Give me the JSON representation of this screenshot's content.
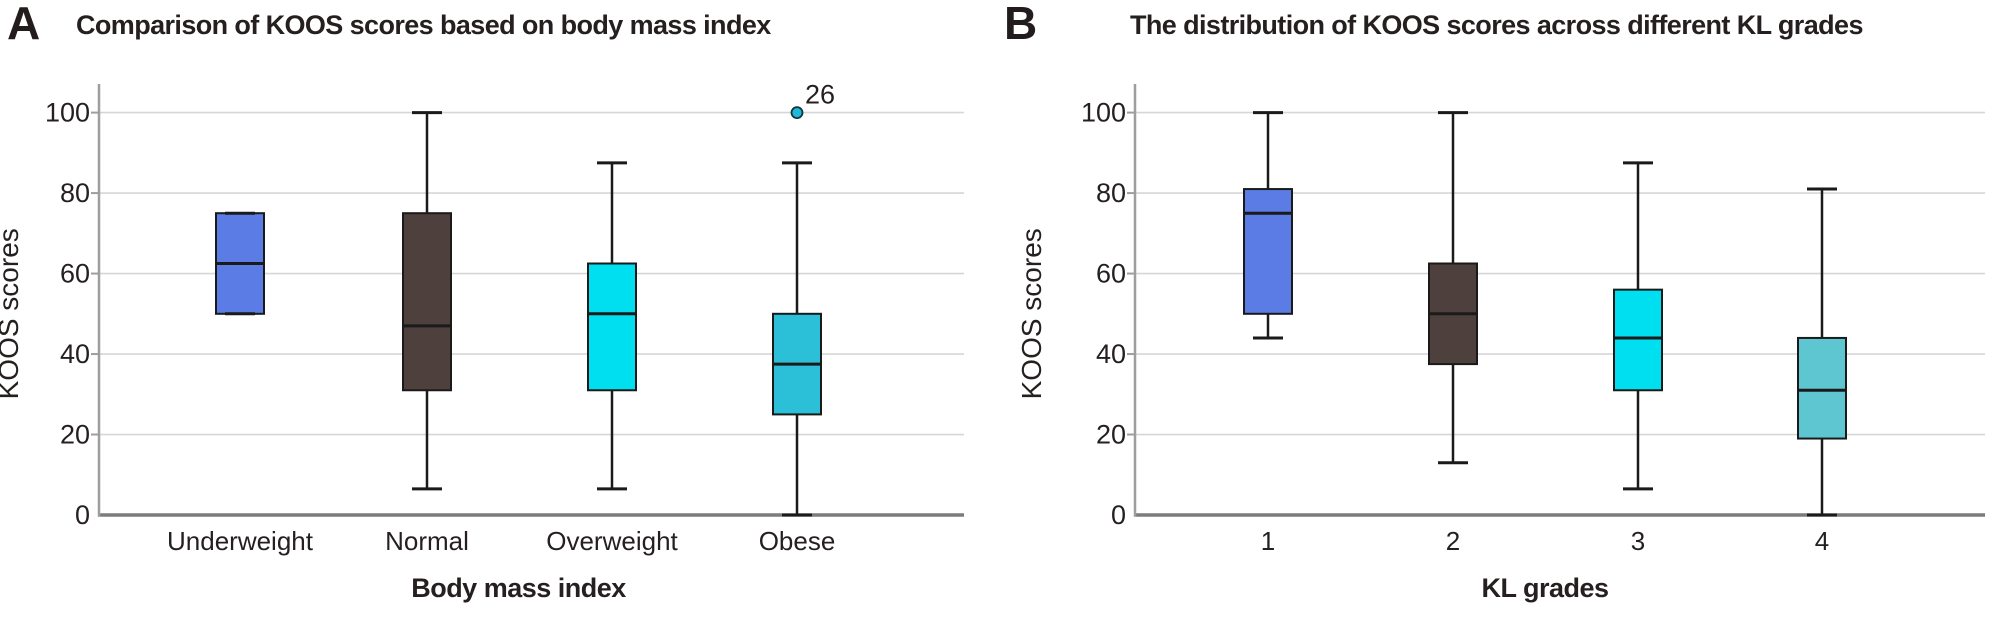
{
  "colors": {
    "grid": "#D6D6D6",
    "baseline": "#7C7C7C",
    "axis_line": "#9E9E9E",
    "box_border": "#1A1A1A",
    "whisker": "#1A1A1A",
    "text": "#251F1F",
    "outlier_fill": "#1FB9D8",
    "outlier_stroke": "#16323E"
  },
  "chart_data": [
    {
      "type": "box",
      "panel_label": "A",
      "title": "Comparison of KOOS scores based on body mass index",
      "xlabel": "Body mass index",
      "ylabel": "KOOS scores",
      "categories": [
        "Underweight",
        "Normal",
        "Overweight",
        "Obese"
      ],
      "yticks": [
        0,
        20,
        40,
        60,
        80,
        100
      ],
      "ylim": [
        0,
        100
      ],
      "grid": true,
      "legend": "none",
      "boxes": [
        {
          "category": "Underweight",
          "color": "#5B7CE4",
          "whisker_low": 50,
          "q1": 50,
          "median": 62.5,
          "q3": 75,
          "whisker_high": 75,
          "outliers": []
        },
        {
          "category": "Normal",
          "color": "#4E403D",
          "whisker_low": 6.5,
          "q1": 31,
          "median": 47,
          "q3": 75,
          "whisker_high": 100,
          "outliers": []
        },
        {
          "category": "Overweight",
          "color": "#00DFEF",
          "whisker_low": 6.5,
          "q1": 31,
          "median": 50,
          "q3": 62.5,
          "whisker_high": 87.5,
          "outliers": []
        },
        {
          "category": "Obese",
          "color": "#2BBFD8",
          "whisker_low": 0,
          "q1": 25,
          "median": 37.5,
          "q3": 50,
          "whisker_high": 87.5,
          "outliers": [
            {
              "value": 100,
              "label": "26"
            }
          ]
        }
      ]
    },
    {
      "type": "box",
      "panel_label": "B",
      "title": "The distribution of KOOS scores across different KL grades",
      "xlabel": "KL grades",
      "ylabel": "KOOS scores",
      "categories": [
        "1",
        "2",
        "3",
        "4"
      ],
      "yticks": [
        0,
        20,
        40,
        60,
        80,
        100
      ],
      "ylim": [
        0,
        100
      ],
      "grid": true,
      "legend": "none",
      "boxes": [
        {
          "category": "1",
          "color": "#5B7CE4",
          "whisker_low": 44,
          "q1": 50,
          "median": 75,
          "q3": 81,
          "whisker_high": 100,
          "outliers": []
        },
        {
          "category": "2",
          "color": "#4E403D",
          "whisker_low": 13,
          "q1": 37.5,
          "median": 50,
          "q3": 62.5,
          "whisker_high": 100,
          "outliers": []
        },
        {
          "category": "3",
          "color": "#00DFEF",
          "whisker_low": 6.5,
          "q1": 31,
          "median": 44,
          "q3": 56,
          "whisker_high": 87.5,
          "outliers": []
        },
        {
          "category": "4",
          "color": "#5EC6D0",
          "whisker_low": 0,
          "q1": 19,
          "median": 31,
          "q3": 44,
          "whisker_high": 81,
          "outliers": []
        }
      ]
    }
  ]
}
